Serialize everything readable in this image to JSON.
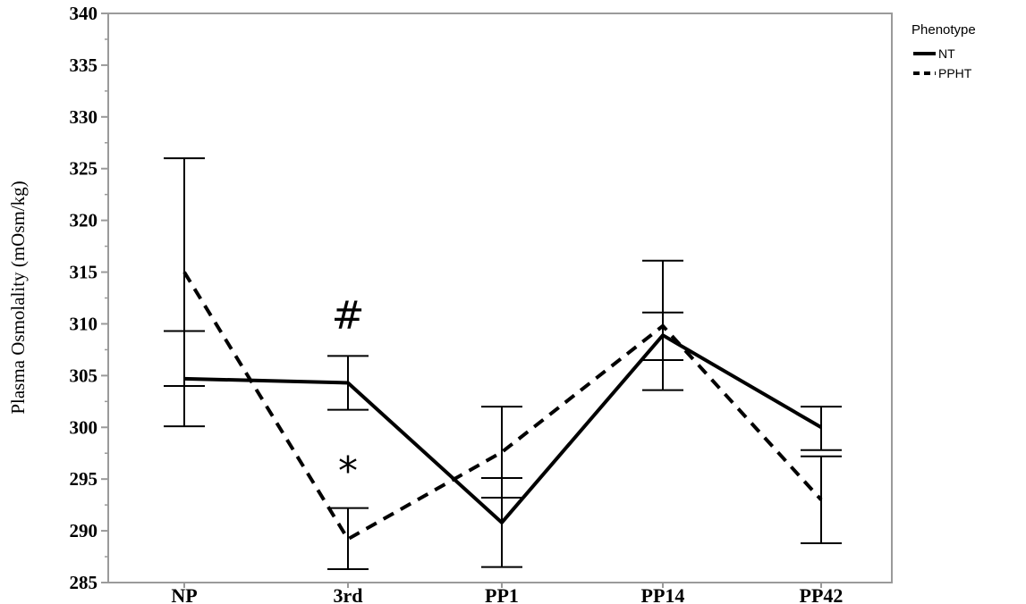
{
  "chart_data": {
    "type": "line",
    "categories": [
      "NP",
      "3rd",
      "PP1",
      "PP14",
      "PP42"
    ],
    "ylabel": "Plasma Osmolality (mOsm/kg)",
    "xlabel": "",
    "ylim": [
      285,
      340
    ],
    "yticks": [
      285,
      290,
      295,
      300,
      305,
      310,
      315,
      320,
      325,
      330,
      335,
      340
    ],
    "grid": false,
    "legend": {
      "title": "Phenotype",
      "placement": "top-right outside"
    },
    "series": [
      {
        "name": "NT",
        "style": "solid",
        "color": "#000000",
        "values": [
          304.7,
          304.3,
          290.8,
          308.9,
          300.0
        ],
        "err_low": [
          300.1,
          301.7,
          286.5,
          306.5,
          297.8
        ],
        "err_high": [
          309.3,
          306.9,
          295.1,
          311.1,
          302.0
        ]
      },
      {
        "name": "PPHT",
        "style": "dashed",
        "color": "#000000",
        "values": [
          315.0,
          289.2,
          297.6,
          309.8,
          293.0
        ],
        "err_low": [
          304.0,
          286.3,
          293.2,
          303.6,
          288.8
        ],
        "err_high": [
          326.0,
          292.2,
          302.0,
          316.1,
          297.2
        ]
      }
    ],
    "annotations": [
      {
        "text": "#",
        "category": "3rd",
        "y": 309.5
      },
      {
        "text": "*",
        "category": "3rd",
        "y": 294.5
      }
    ]
  }
}
